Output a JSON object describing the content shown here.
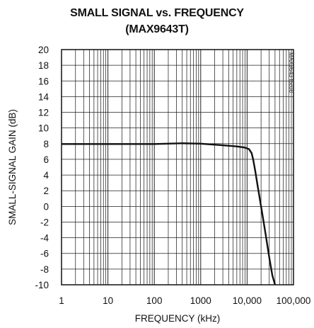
{
  "chart_data": {
    "type": "line",
    "title": "SMALL SIGNAL vs. FREQUENCY",
    "subtitle": "(MAX9643T)",
    "xlabel": "FREQUENCY (kHz)",
    "ylabel": "SMALL-SIGNAL GAIN (dB)",
    "xscale": "log",
    "xlim": [
      1,
      100000
    ],
    "ylim": [
      -10,
      20
    ],
    "grid": true,
    "x_tick_labels": [
      "1",
      "10",
      "100",
      "1000",
      "10,000",
      "100,000"
    ],
    "y_tick_labels": [
      "20",
      "18",
      "16",
      "14",
      "12",
      "10",
      "8",
      "6",
      "4",
      "2",
      "0",
      "-2",
      "-4",
      "-6",
      "-8",
      "-10"
    ],
    "annotation": "MAX9643 toc08",
    "series": [
      {
        "color": "#111111",
        "x": [
          1,
          10,
          100,
          400,
          1000,
          3000,
          6000,
          9000,
          11000,
          12500,
          13500,
          15000,
          17000,
          20000,
          25000,
          30000,
          35000,
          40000
        ],
        "y": [
          7.95,
          7.95,
          7.95,
          8.05,
          8.0,
          7.8,
          7.65,
          7.5,
          7.3,
          6.8,
          6.0,
          4.5,
          2.5,
          0.0,
          -3.5,
          -6.5,
          -8.8,
          -10.0
        ]
      }
    ]
  }
}
